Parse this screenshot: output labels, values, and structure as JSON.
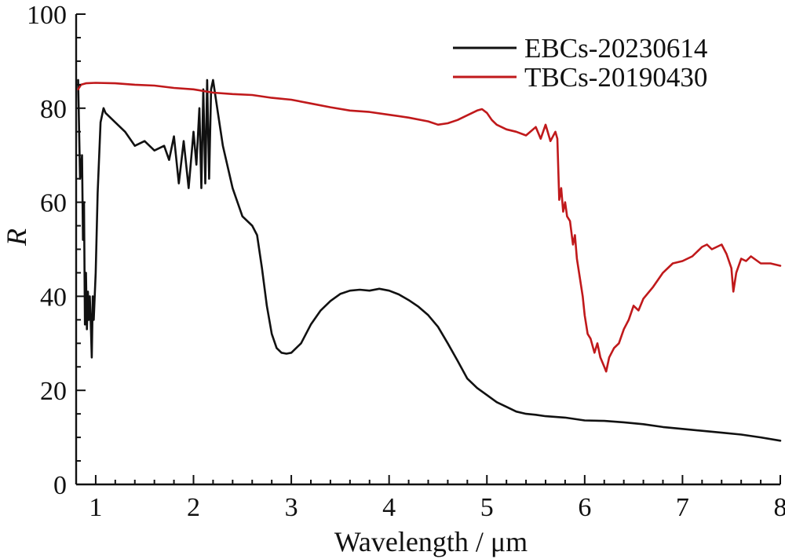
{
  "chart_data": {
    "type": "line",
    "title": "",
    "xlabel": "Wavelength / μm",
    "ylabel": "R",
    "xlim": [
      0.8,
      8
    ],
    "ylim": [
      0,
      100
    ],
    "xticks": [
      1,
      2,
      3,
      4,
      5,
      6,
      7,
      8
    ],
    "yticks": [
      0,
      20,
      40,
      60,
      80,
      100
    ],
    "grid": false,
    "legend": "top-right",
    "series": [
      {
        "name": "EBCs-20230614",
        "color": "#111111",
        "x": [
          0.82,
          0.84,
          0.86,
          0.87,
          0.88,
          0.89,
          0.9,
          0.91,
          0.92,
          0.93,
          0.94,
          0.95,
          0.96,
          0.97,
          0.98,
          1.0,
          1.02,
          1.05,
          1.08,
          1.1,
          1.2,
          1.3,
          1.4,
          1.5,
          1.6,
          1.7,
          1.75,
          1.8,
          1.85,
          1.9,
          1.95,
          2.0,
          2.03,
          2.06,
          2.08,
          2.1,
          2.12,
          2.14,
          2.16,
          2.18,
          2.2,
          2.25,
          2.3,
          2.4,
          2.5,
          2.6,
          2.65,
          2.7,
          2.75,
          2.8,
          2.85,
          2.9,
          2.95,
          3.0,
          3.1,
          3.2,
          3.3,
          3.4,
          3.5,
          3.6,
          3.7,
          3.8,
          3.9,
          4.0,
          4.1,
          4.2,
          4.3,
          4.4,
          4.5,
          4.6,
          4.7,
          4.8,
          4.9,
          5.0,
          5.1,
          5.2,
          5.3,
          5.4,
          5.5,
          5.6,
          5.8,
          6.0,
          6.2,
          6.4,
          6.6,
          6.8,
          7.0,
          7.2,
          7.4,
          7.6,
          7.8,
          8.0
        ],
        "values": [
          86,
          65,
          70,
          52,
          60,
          34,
          45,
          33,
          41,
          35,
          40,
          34,
          27,
          40,
          35,
          45,
          62,
          77,
          80,
          79,
          77,
          75,
          72,
          73,
          71,
          72,
          69,
          74,
          64,
          73,
          63,
          75,
          68,
          80,
          63,
          84,
          64,
          86,
          65,
          84,
          86,
          79,
          72,
          63,
          57,
          55,
          53,
          46,
          38,
          32,
          29,
          28,
          27.8,
          28,
          30,
          34,
          37,
          39,
          40.5,
          41.2,
          41.4,
          41.2,
          41.6,
          41.2,
          40.4,
          39.2,
          37.8,
          36,
          33.5,
          30,
          26.3,
          22.5,
          20.5,
          19,
          17.5,
          16.5,
          15.5,
          15,
          14.8,
          14.5,
          14.2,
          13.6,
          13.5,
          13.2,
          12.8,
          12.2,
          11.8,
          11.4,
          11,
          10.6,
          10,
          9.3
        ]
      },
      {
        "name": "TBCs-20190430",
        "color": "#c0191b",
        "x": [
          0.82,
          0.85,
          0.9,
          1.0,
          1.2,
          1.4,
          1.6,
          1.8,
          2.0,
          2.2,
          2.4,
          2.6,
          2.8,
          3.0,
          3.2,
          3.4,
          3.6,
          3.8,
          4.0,
          4.2,
          4.4,
          4.5,
          4.6,
          4.7,
          4.8,
          4.9,
          4.95,
          5.0,
          5.05,
          5.1,
          5.2,
          5.3,
          5.4,
          5.5,
          5.55,
          5.6,
          5.65,
          5.7,
          5.72,
          5.74,
          5.76,
          5.78,
          5.8,
          5.82,
          5.85,
          5.88,
          5.9,
          5.92,
          5.95,
          5.98,
          6.0,
          6.03,
          6.06,
          6.1,
          6.13,
          6.16,
          6.2,
          6.22,
          6.25,
          6.3,
          6.35,
          6.4,
          6.45,
          6.5,
          6.55,
          6.6,
          6.7,
          6.8,
          6.9,
          7.0,
          7.1,
          7.2,
          7.25,
          7.3,
          7.4,
          7.45,
          7.5,
          7.52,
          7.55,
          7.6,
          7.65,
          7.7,
          7.8,
          7.9,
          8.0
        ],
        "values": [
          84,
          85,
          85.3,
          85.4,
          85.3,
          85,
          84.8,
          84.3,
          84,
          83.3,
          83,
          82.8,
          82.2,
          81.8,
          81,
          80.2,
          79.5,
          79.2,
          78.6,
          78,
          77.2,
          76.5,
          76.8,
          77.5,
          78.5,
          79.5,
          79.8,
          79,
          77.5,
          76.5,
          75.5,
          75,
          74.2,
          76,
          73.5,
          76.5,
          73,
          75,
          73.5,
          60.5,
          63,
          58,
          60,
          57,
          56,
          51,
          53,
          48,
          44,
          40,
          36,
          32,
          31,
          28,
          30,
          27,
          25,
          24,
          27,
          29,
          30,
          33,
          35,
          38,
          37,
          39.5,
          42,
          45,
          47,
          47.5,
          48.5,
          50.5,
          51,
          50,
          51,
          49,
          46,
          41,
          45,
          48,
          47.5,
          48.5,
          47,
          47,
          46.5
        ]
      }
    ]
  }
}
